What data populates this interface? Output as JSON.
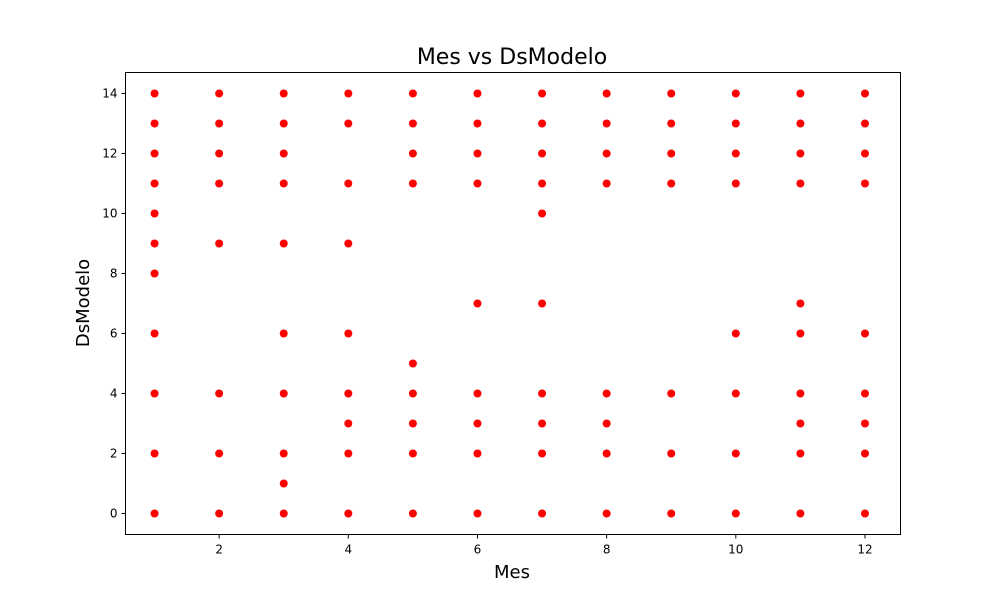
{
  "chart_data": {
    "type": "scatter",
    "title": "Mes vs DsModelo",
    "xlabel": "Mes",
    "ylabel": "DsModelo",
    "xlim": [
      0.55,
      12.55
    ],
    "ylim": [
      -0.7,
      14.7
    ],
    "xticks": [
      2,
      4,
      6,
      8,
      10,
      12
    ],
    "yticks": [
      0,
      2,
      4,
      6,
      8,
      10,
      12,
      14
    ],
    "grid": false,
    "color": "#ff0000",
    "points": [
      [
        1,
        0
      ],
      [
        1,
        2
      ],
      [
        1,
        4
      ],
      [
        1,
        6
      ],
      [
        1,
        8
      ],
      [
        1,
        9
      ],
      [
        1,
        10
      ],
      [
        1,
        11
      ],
      [
        1,
        12
      ],
      [
        1,
        13
      ],
      [
        1,
        14
      ],
      [
        2,
        0
      ],
      [
        2,
        2
      ],
      [
        2,
        4
      ],
      [
        2,
        9
      ],
      [
        2,
        11
      ],
      [
        2,
        12
      ],
      [
        2,
        13
      ],
      [
        2,
        14
      ],
      [
        3,
        0
      ],
      [
        3,
        1
      ],
      [
        3,
        2
      ],
      [
        3,
        4
      ],
      [
        3,
        6
      ],
      [
        3,
        9
      ],
      [
        3,
        11
      ],
      [
        3,
        12
      ],
      [
        3,
        13
      ],
      [
        3,
        14
      ],
      [
        4,
        0
      ],
      [
        4,
        2
      ],
      [
        4,
        3
      ],
      [
        4,
        4
      ],
      [
        4,
        6
      ],
      [
        4,
        9
      ],
      [
        4,
        11
      ],
      [
        4,
        13
      ],
      [
        4,
        14
      ],
      [
        5,
        0
      ],
      [
        5,
        2
      ],
      [
        5,
        3
      ],
      [
        5,
        4
      ],
      [
        5,
        5
      ],
      [
        5,
        11
      ],
      [
        5,
        12
      ],
      [
        5,
        13
      ],
      [
        5,
        14
      ],
      [
        6,
        0
      ],
      [
        6,
        2
      ],
      [
        6,
        3
      ],
      [
        6,
        4
      ],
      [
        6,
        7
      ],
      [
        6,
        11
      ],
      [
        6,
        12
      ],
      [
        6,
        13
      ],
      [
        6,
        14
      ],
      [
        7,
        0
      ],
      [
        7,
        2
      ],
      [
        7,
        3
      ],
      [
        7,
        4
      ],
      [
        7,
        7
      ],
      [
        7,
        10
      ],
      [
        7,
        11
      ],
      [
        7,
        12
      ],
      [
        7,
        13
      ],
      [
        7,
        14
      ],
      [
        8,
        0
      ],
      [
        8,
        2
      ],
      [
        8,
        3
      ],
      [
        8,
        4
      ],
      [
        8,
        11
      ],
      [
        8,
        12
      ],
      [
        8,
        13
      ],
      [
        8,
        14
      ],
      [
        9,
        0
      ],
      [
        9,
        2
      ],
      [
        9,
        4
      ],
      [
        9,
        11
      ],
      [
        9,
        12
      ],
      [
        9,
        13
      ],
      [
        9,
        14
      ],
      [
        10,
        0
      ],
      [
        10,
        2
      ],
      [
        10,
        4
      ],
      [
        10,
        6
      ],
      [
        10,
        11
      ],
      [
        10,
        12
      ],
      [
        10,
        13
      ],
      [
        10,
        14
      ],
      [
        11,
        0
      ],
      [
        11,
        2
      ],
      [
        11,
        3
      ],
      [
        11,
        4
      ],
      [
        11,
        6
      ],
      [
        11,
        7
      ],
      [
        11,
        11
      ],
      [
        11,
        12
      ],
      [
        11,
        13
      ],
      [
        11,
        14
      ],
      [
        12,
        0
      ],
      [
        12,
        2
      ],
      [
        12,
        3
      ],
      [
        12,
        4
      ],
      [
        12,
        6
      ],
      [
        12,
        11
      ],
      [
        12,
        12
      ],
      [
        12,
        13
      ],
      [
        12,
        14
      ]
    ]
  }
}
